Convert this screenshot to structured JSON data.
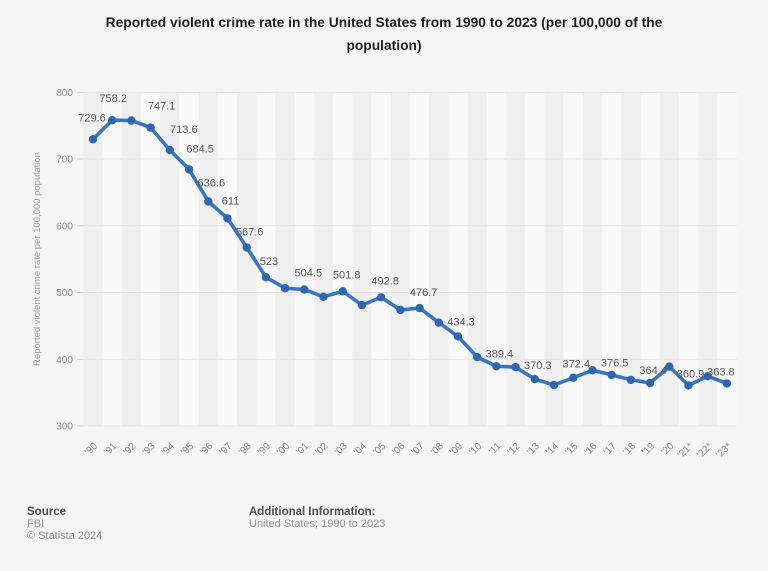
{
  "title": {
    "text": "Reported violent crime rate in the United States from 1990 to 2023 (per 100,000 of the\npopulation)"
  },
  "chart_data": {
    "type": "line",
    "title": "Reported violent crime rate in the United States from 1990 to 2023 (per 100,000 of the population)",
    "ylabel": "Reported violent crime rate per 100,000 population",
    "ylim": [
      300,
      800
    ],
    "yticks": [
      300,
      400,
      500,
      600,
      700,
      800
    ],
    "grid": true,
    "legend": false,
    "points": [
      {
        "year": "'90",
        "value": 729.6,
        "label": "729.6"
      },
      {
        "year": "'91",
        "value": 758.2,
        "label": "758.2"
      },
      {
        "year": "'92",
        "value": 757.7,
        "label": null
      },
      {
        "year": "'93",
        "value": 747.1,
        "label": "747.1"
      },
      {
        "year": "'94",
        "value": 713.6,
        "label": "713.6"
      },
      {
        "year": "'95",
        "value": 684.5,
        "label": "684.5"
      },
      {
        "year": "'96",
        "value": 636.6,
        "label": "636.6"
      },
      {
        "year": "'97",
        "value": 611,
        "label": "611"
      },
      {
        "year": "'98",
        "value": 567.6,
        "label": "567.6"
      },
      {
        "year": "'99",
        "value": 523,
        "label": "523"
      },
      {
        "year": "'00",
        "value": 506.4,
        "label": null
      },
      {
        "year": "'01",
        "value": 504.5,
        "label": "504.5"
      },
      {
        "year": "'02",
        "value": 493.6,
        "label": null
      },
      {
        "year": "'03",
        "value": 501.8,
        "label": "501.8"
      },
      {
        "year": "'04",
        "value": 481.1,
        "label": null
      },
      {
        "year": "'05",
        "value": 492.8,
        "label": "492.8"
      },
      {
        "year": "'06",
        "value": 474.0,
        "label": null
      },
      {
        "year": "'07",
        "value": 476.7,
        "label": "476.7"
      },
      {
        "year": "'08",
        "value": 455.0,
        "label": null
      },
      {
        "year": "'09",
        "value": 434.3,
        "label": "434.3"
      },
      {
        "year": "'10",
        "value": 403.2,
        "label": null
      },
      {
        "year": "'11",
        "value": 389.4,
        "label": "389.4"
      },
      {
        "year": "'12",
        "value": 388.3,
        "label": null
      },
      {
        "year": "'13",
        "value": 370.3,
        "label": "370.3"
      },
      {
        "year": "'14",
        "value": 361.5,
        "label": null
      },
      {
        "year": "'15",
        "value": 372.4,
        "label": "372.4"
      },
      {
        "year": "'16",
        "value": 383.4,
        "label": null
      },
      {
        "year": "'17",
        "value": 376.5,
        "label": "376.5"
      },
      {
        "year": "'18",
        "value": 369.1,
        "label": null
      },
      {
        "year": "'19",
        "value": 364.4,
        "label": "364.4"
      },
      {
        "year": "'20",
        "value": 389.0,
        "label": null
      },
      {
        "year": "'21*",
        "value": 360.9,
        "label": "360.9"
      },
      {
        "year": "'22*",
        "value": 374.6,
        "label": null
      },
      {
        "year": "'23*",
        "value": 363.8,
        "label": "363.8"
      }
    ]
  },
  "colors": {
    "line": "#3876bf",
    "marker": "#2e67af",
    "data_label": "#555555",
    "axis_label": "#8c8c8c",
    "axis_title": "#999999",
    "grid": "#e0e0e0",
    "tick": "#cccccc",
    "band_dark": "#efefef",
    "band_light": "#f9f9f9",
    "background": "#f5f5f5",
    "title": "#1f1f1f"
  },
  "footer": {
    "source_heading": "Source",
    "source_value": "FBI",
    "copyright": "© Statista 2024",
    "additional_heading": "Additional Information:",
    "additional_value": "United States; 1990 to 2023"
  }
}
